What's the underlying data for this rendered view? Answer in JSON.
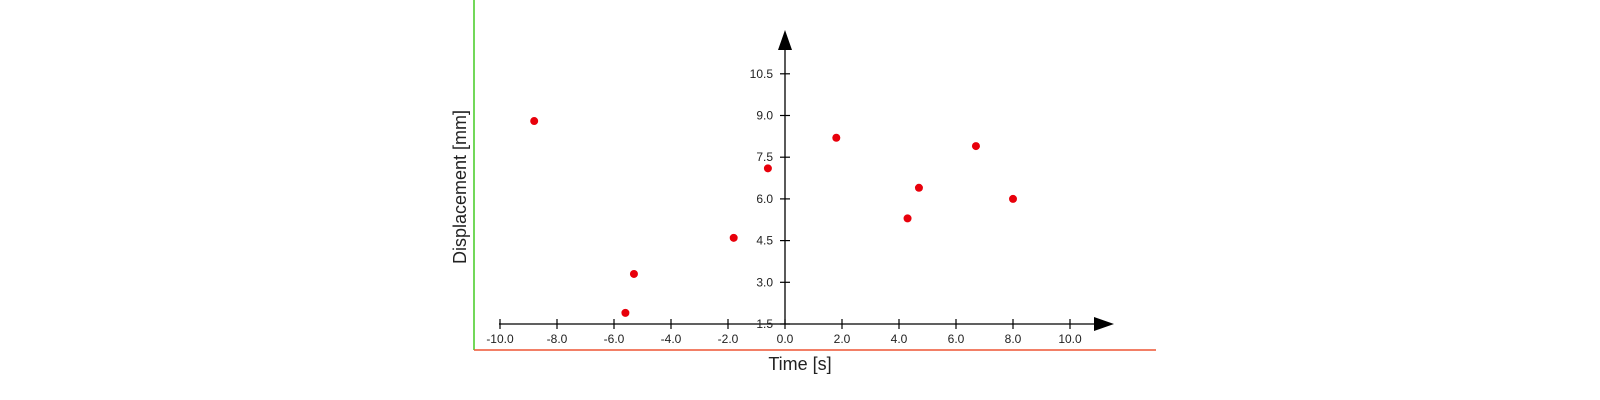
{
  "chart_data": {
    "type": "scatter",
    "title": "",
    "xlabel": "Time [s]",
    "ylabel": "Displacement [mm]",
    "xlim": [
      -10.0,
      10.0
    ],
    "ylim": [
      1.5,
      10.5
    ],
    "x_ticks": [
      -10.0,
      -8.0,
      -6.0,
      -4.0,
      -2.0,
      0.0,
      2.0,
      4.0,
      6.0,
      8.0,
      10.0
    ],
    "x_tick_labels": [
      "-10.0",
      "-8.0",
      "-6.0",
      "-4.0",
      "-2.0",
      "0.0",
      "2.0",
      "4.0",
      "6.0",
      "8.0",
      "10.0"
    ],
    "y_ticks": [
      1.5,
      3.0,
      4.5,
      6.0,
      7.5,
      9.0,
      10.5
    ],
    "y_tick_labels": [
      "1.5",
      "3.0",
      "4.5",
      "6.0",
      "7.5",
      "9.0",
      "10.5"
    ],
    "grid": false,
    "series": [
      {
        "color": "#e8000b",
        "points": [
          {
            "x": -8.8,
            "y": 8.8
          },
          {
            "x": -5.6,
            "y": 1.9
          },
          {
            "x": -5.3,
            "y": 3.3
          },
          {
            "x": -1.8,
            "y": 4.6
          },
          {
            "x": -0.6,
            "y": 7.1
          },
          {
            "x": 1.8,
            "y": 8.2
          },
          {
            "x": 4.3,
            "y": 5.3
          },
          {
            "x": 4.7,
            "y": 6.4
          },
          {
            "x": 6.7,
            "y": 7.9
          },
          {
            "x": 8.0,
            "y": 6.0
          }
        ]
      }
    ]
  },
  "colors": {
    "frame_left": "#44cc22",
    "frame_bottom": "#ee5533",
    "axis": "#000000",
    "point": "#e8000b"
  }
}
